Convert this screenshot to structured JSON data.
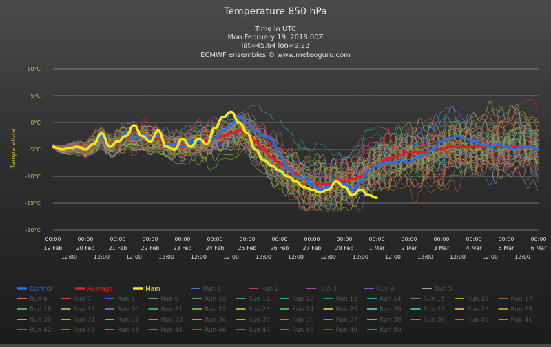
{
  "chart_data": {
    "type": "line",
    "title": "Temperature 850 hPa",
    "subtitle_lines": [
      "Time in UTC",
      "Mon February 19, 2018 00Z",
      "lat=45.64 lon=9.23",
      "ECMWF ensembles © www.meteoguru.com"
    ],
    "ylabel": "Temperature",
    "ylim": [
      -20,
      10
    ],
    "y_ticks": [
      10,
      5,
      0,
      -5,
      -10,
      -15,
      -20
    ],
    "y_tick_labels": [
      "10°C",
      "5°C",
      "0°C",
      "-5°C",
      "-10°C",
      "-15°C",
      "-20°C"
    ],
    "grid": true,
    "x_unit": "hours since Mon February 19, 2018 00Z",
    "xlim": [
      0,
      360
    ],
    "x_ticks_top": [
      {
        "t": 0,
        "time": "00:00",
        "date": "19 Feb"
      },
      {
        "t": 24,
        "time": "00:00",
        "date": "20 Feb"
      },
      {
        "t": 48,
        "time": "00:00",
        "date": "21 Feb"
      },
      {
        "t": 72,
        "time": "00:00",
        "date": "22 Feb"
      },
      {
        "t": 96,
        "time": "00:00",
        "date": "23 Feb"
      },
      {
        "t": 120,
        "time": "00:00",
        "date": "24 Feb"
      },
      {
        "t": 144,
        "time": "00:00",
        "date": "25 Feb"
      },
      {
        "t": 168,
        "time": "00:00",
        "date": "26 Feb"
      },
      {
        "t": 192,
        "time": "00:00",
        "date": "27 Feb"
      },
      {
        "t": 216,
        "time": "00:00",
        "date": "28 Feb"
      },
      {
        "t": 240,
        "time": "00:00",
        "date": "1 Mar"
      },
      {
        "t": 264,
        "time": "00:00",
        "date": "2 Mar"
      },
      {
        "t": 288,
        "time": "00:00",
        "date": "3 Mar"
      },
      {
        "t": 312,
        "time": "00:00",
        "date": "4 Mar"
      },
      {
        "t": 336,
        "time": "00:00",
        "date": "5 Mar"
      },
      {
        "t": 360,
        "time": "00:00",
        "date": "6 Mar"
      }
    ],
    "x_ticks_noon": [
      {
        "t": 12,
        "label": "12:00"
      },
      {
        "t": 36,
        "label": "12:00"
      },
      {
        "t": 60,
        "label": "12:00"
      },
      {
        "t": 84,
        "label": "12:00"
      },
      {
        "t": 108,
        "label": "12:00"
      },
      {
        "t": 132,
        "label": "12:00"
      },
      {
        "t": 156,
        "label": "12:00"
      },
      {
        "t": 180,
        "label": "12:00"
      },
      {
        "t": 204,
        "label": "12:00"
      },
      {
        "t": 228,
        "label": "12:00"
      },
      {
        "t": 252,
        "label": "12:00"
      },
      {
        "t": 276,
        "label": "12:00"
      },
      {
        "t": 300,
        "label": "12:00"
      },
      {
        "t": 324,
        "label": "12:00"
      },
      {
        "t": 348,
        "label": "12:00"
      }
    ],
    "highlight_series": [
      {
        "name": "Control",
        "color": "#2f6fe0",
        "x": [
          0,
          6,
          12,
          18,
          24,
          30,
          36,
          42,
          48,
          54,
          60,
          66,
          72,
          78,
          84,
          90,
          96,
          102,
          108,
          114,
          120,
          126,
          132,
          138,
          144,
          150,
          156,
          162,
          168,
          174,
          180,
          186,
          192,
          198,
          204,
          210,
          216,
          222,
          228,
          234,
          240,
          246,
          252,
          258,
          264,
          270,
          276,
          282,
          288,
          294,
          300,
          306,
          312,
          318,
          324,
          330,
          336,
          342,
          348,
          354,
          360
        ],
        "y": [
          -4.5,
          -5,
          -4.8,
          -4.5,
          -5,
          -4,
          -2.5,
          -4.5,
          -3.5,
          -2,
          -3,
          -2.5,
          -3,
          -2.5,
          -4,
          -4,
          -4.5,
          -3.5,
          -3.5,
          -4,
          -3,
          -1.5,
          -0.5,
          1,
          0,
          -1.5,
          -2.5,
          -3,
          -6,
          -8.5,
          -10,
          -10.5,
          -11.5,
          -12.5,
          -12,
          -11,
          -11.5,
          -12.5,
          -11,
          -9,
          -8,
          -7.5,
          -7.5,
          -7,
          -7.5,
          -6.5,
          -6,
          -5,
          -3.5,
          -3,
          -2.5,
          -3,
          -3.5,
          -4,
          -4.5,
          -4,
          -4.5,
          -5,
          -4.5,
          -4.5,
          -5
        ]
      },
      {
        "name": "Average",
        "color": "#e02020",
        "x": [
          0,
          6,
          12,
          18,
          24,
          30,
          36,
          42,
          48,
          54,
          60,
          66,
          72,
          78,
          84,
          90,
          96,
          102,
          108,
          114,
          120,
          126,
          132,
          138,
          144,
          150,
          156,
          162,
          168,
          174,
          180,
          186,
          192,
          198,
          204,
          210,
          216,
          222,
          228,
          234,
          240,
          246,
          252,
          258,
          264,
          270,
          276,
          282,
          288,
          294,
          300,
          306,
          312,
          318,
          324,
          330,
          336,
          342,
          348,
          354,
          360
        ],
        "y": [
          -4.5,
          -5,
          -4.8,
          -4.5,
          -5,
          -4,
          -2.5,
          -4.5,
          -3.5,
          -2.5,
          -3,
          -2.5,
          -3,
          -3,
          -4,
          -4,
          -4.3,
          -3.8,
          -3.5,
          -3.5,
          -3,
          -2.5,
          -2,
          -1.5,
          -2,
          -3.5,
          -5,
          -6.5,
          -7.5,
          -8.5,
          -9.5,
          -10.5,
          -11.5,
          -11.5,
          -11.5,
          -11,
          -11,
          -10.5,
          -10,
          -9,
          -8,
          -7,
          -6.5,
          -6,
          -5.5,
          -5.5,
          -5.5,
          -5,
          -5,
          -4.5,
          -4.5,
          -4.5,
          -4.5,
          -4.5,
          -4.5,
          -4.5,
          -4.5,
          -4.5,
          -4.5,
          -4.5,
          -5
        ]
      },
      {
        "name": "Main",
        "color": "#f5e624",
        "x": [
          0,
          6,
          12,
          18,
          24,
          30,
          36,
          42,
          48,
          54,
          60,
          66,
          72,
          78,
          84,
          90,
          96,
          102,
          108,
          114,
          120,
          126,
          132,
          138,
          144,
          150,
          156,
          162,
          168,
          174,
          180,
          186,
          192,
          198,
          204,
          210,
          216,
          222,
          228,
          234,
          240
        ],
        "y": [
          -4.5,
          -5,
          -4.8,
          -4.5,
          -5,
          -4,
          -2,
          -4.5,
          -3.5,
          -2.5,
          -0.5,
          -2.5,
          -3.5,
          -1.5,
          -4.5,
          -5,
          -3,
          -4.5,
          -3,
          -4,
          -1,
          1,
          2,
          0,
          -2,
          -5,
          -7,
          -8,
          -9,
          -10,
          -11,
          -12,
          -12.5,
          -13,
          -12.5,
          -11,
          -12,
          -13.5,
          -12.5,
          -13.5,
          -14
        ]
      }
    ],
    "ensemble": {
      "runs": 50,
      "style": "thin colored lines spread around the average"
    },
    "legend": {
      "placement": "bottom",
      "items": [
        {
          "name": "Control",
          "color": "#2f6fe0"
        },
        {
          "name": "Average",
          "color": "#e02020"
        },
        {
          "name": "Main",
          "color": "#f5e624"
        },
        {
          "name": "Run 1",
          "color": "#3a7ad6"
        },
        {
          "name": "Run 2",
          "color": "#d04040"
        },
        {
          "name": "Run 3",
          "color": "#b040c0"
        },
        {
          "name": "Run 4",
          "color": "#9a50d0"
        },
        {
          "name": "Run 5",
          "color": "#a0a0a0"
        },
        {
          "name": "Run 6",
          "color": "#d07060"
        },
        {
          "name": "Run 7",
          "color": "#c05050"
        },
        {
          "name": "Run 8",
          "color": "#5060d0"
        },
        {
          "name": "Run 9",
          "color": "#60a0a0"
        },
        {
          "name": "Run 10",
          "color": "#50a050"
        },
        {
          "name": "Run 11",
          "color": "#40a0a0"
        },
        {
          "name": "Run 12",
          "color": "#40b080"
        },
        {
          "name": "Run 13",
          "color": "#30a040"
        },
        {
          "name": "Run 14",
          "color": "#30a0a0"
        },
        {
          "name": "Run 15",
          "color": "#b06080"
        },
        {
          "name": "Run 16",
          "color": "#c09040"
        },
        {
          "name": "Run 17",
          "color": "#a06030"
        },
        {
          "name": "Run 18",
          "color": "#60a060"
        },
        {
          "name": "Run 19",
          "color": "#a0a050"
        },
        {
          "name": "Run 20",
          "color": "#6070a0"
        },
        {
          "name": "Run 21",
          "color": "#40a060"
        },
        {
          "name": "Run 22",
          "color": "#60b040"
        },
        {
          "name": "Run 23",
          "color": "#a0b030"
        },
        {
          "name": "Run 24",
          "color": "#40b050"
        },
        {
          "name": "Run 25",
          "color": "#b0b040"
        },
        {
          "name": "Run 26",
          "color": "#50b0a0"
        },
        {
          "name": "Run 27",
          "color": "#50a0b0"
        },
        {
          "name": "Run 28",
          "color": "#c0a040"
        },
        {
          "name": "Run 29",
          "color": "#b09030"
        },
        {
          "name": "Run 30",
          "color": "#a0b050"
        },
        {
          "name": "Run 31",
          "color": "#b0b040"
        },
        {
          "name": "Run 32",
          "color": "#a0a060"
        },
        {
          "name": "Run 33",
          "color": "#c08040"
        },
        {
          "name": "Run 34",
          "color": "#b0a050"
        },
        {
          "name": "Run 35",
          "color": "#c0a030"
        },
        {
          "name": "Run 36",
          "color": "#a08050"
        },
        {
          "name": "Run 37",
          "color": "#6090b0"
        },
        {
          "name": "Run 38",
          "color": "#a0a060"
        },
        {
          "name": "Run 39",
          "color": "#b07050"
        },
        {
          "name": "Run 40",
          "color": "#a08040"
        },
        {
          "name": "Run 41",
          "color": "#909060"
        },
        {
          "name": "Run 42",
          "color": "#707070"
        },
        {
          "name": "Run 43",
          "color": "#c06040"
        },
        {
          "name": "Run 44",
          "color": "#d06030"
        },
        {
          "name": "Run 45",
          "color": "#d05050"
        },
        {
          "name": "Run 46",
          "color": "#c04040"
        },
        {
          "name": "Run 47",
          "color": "#b05050"
        },
        {
          "name": "Run 48",
          "color": "#d04040"
        },
        {
          "name": "Run 49",
          "color": "#c03030"
        },
        {
          "name": "Run 50",
          "color": "#508090"
        }
      ]
    }
  }
}
